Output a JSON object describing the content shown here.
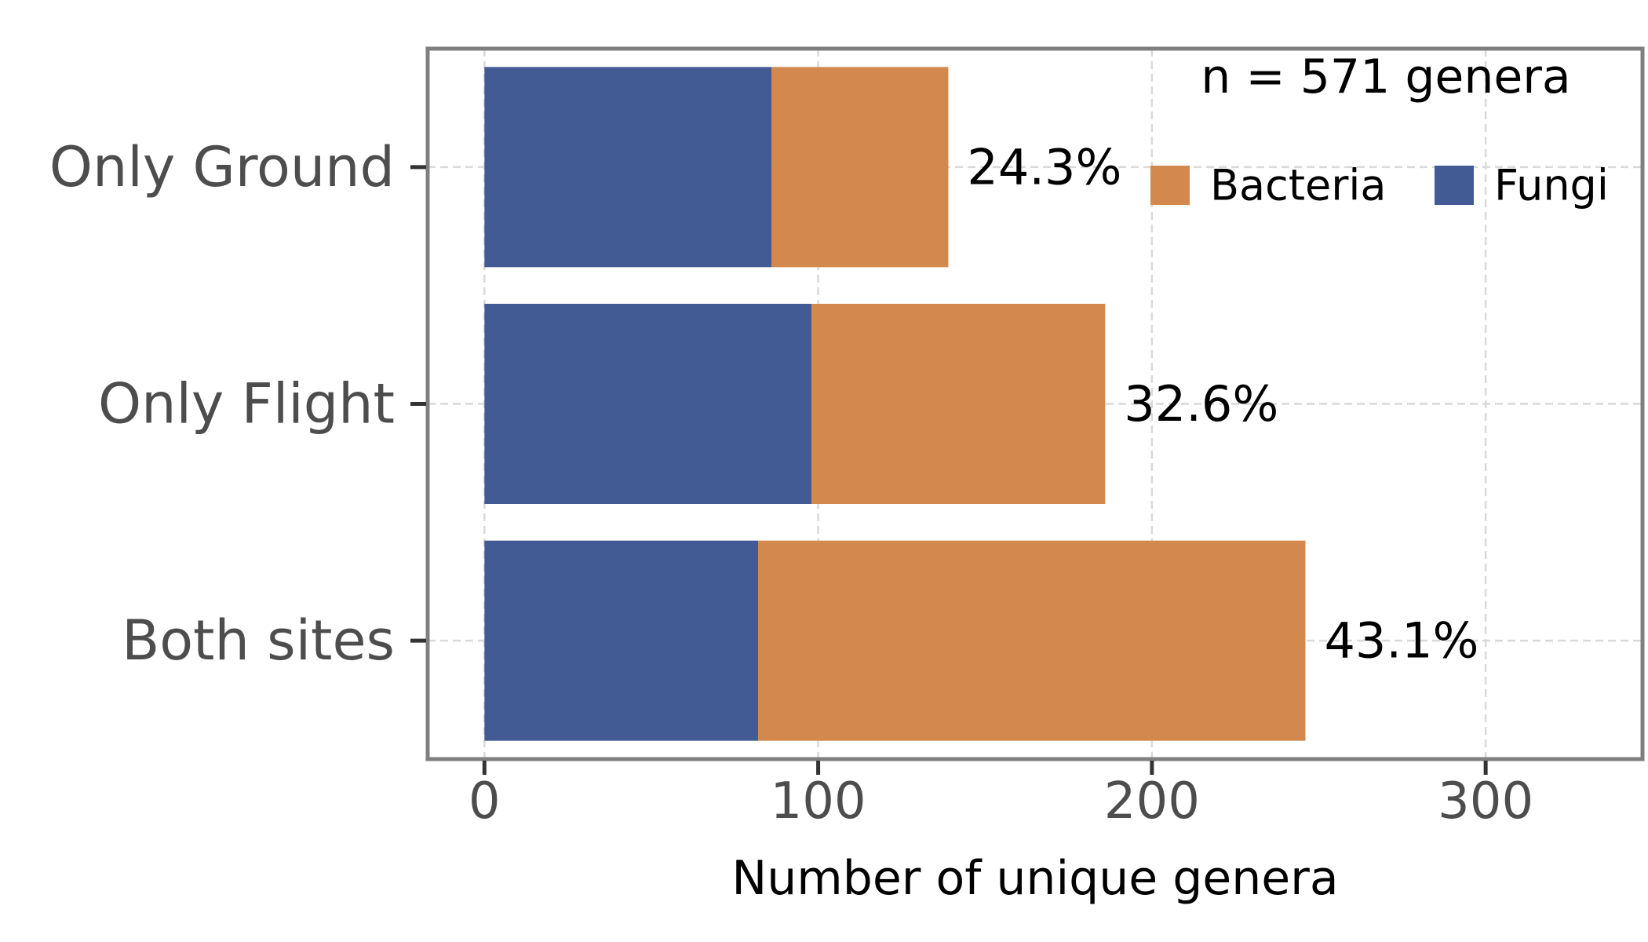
{
  "chart_data": {
    "type": "bar",
    "orientation": "horizontal",
    "stacked": true,
    "categories": [
      "Only Ground",
      "Only Flight",
      "Both sites"
    ],
    "series": [
      {
        "name": "Fungi",
        "values": [
          86,
          98,
          82
        ]
      },
      {
        "name": "Bacteria",
        "values": [
          53,
          88,
          164
        ]
      }
    ],
    "percent_labels": [
      "24.3%",
      "32.6%",
      "43.1%"
    ],
    "annotation": "n = 571 genera",
    "xlabel": "Number of unique genera",
    "ylabel": "",
    "xlim": [
      -17,
      347
    ],
    "xticks": [
      0,
      100,
      200,
      300
    ],
    "grid": true,
    "legend_position": "top-right",
    "legend_order": [
      "Bacteria",
      "Fungi"
    ]
  },
  "colors": {
    "Fungi": "#435b95",
    "Bacteria": "#d3894d",
    "frame": "#7f7f7f",
    "grid": "#d9d9d9"
  }
}
